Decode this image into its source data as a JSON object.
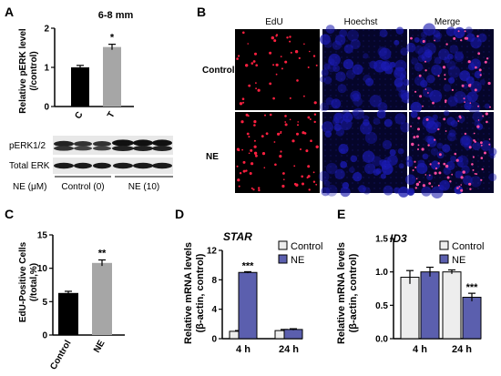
{
  "panel_letters": {
    "A": "A",
    "B": "B",
    "C": "C",
    "D": "D",
    "E": "E"
  },
  "panelA": {
    "subtitle": "6-8 mm",
    "ylabel_1": "Relative pERK level",
    "ylabel_2": "(/control)",
    "significance": "*",
    "blot": {
      "rows": [
        "pERK1/2",
        "Total ERK"
      ],
      "treatment_label": "NE (μM)",
      "groups": [
        "Control (0)",
        "NE (10)"
      ]
    }
  },
  "panelB": {
    "columns": [
      "EdU",
      "Hoechst",
      "Merge"
    ],
    "rows": [
      "Control",
      "NE"
    ]
  },
  "panelC": {
    "ylabel_1": "EdU-Positive Cells",
    "ylabel_2": "(/total,%)",
    "significance": "**"
  },
  "panelD": {
    "gene": "STAR",
    "ylabel_1": "Relative mRNA levels",
    "ylabel_2": "(β-actin, control)",
    "legend": [
      "Control",
      "NE"
    ],
    "significance": "***"
  },
  "panelE": {
    "gene": "ID3",
    "ylabel_1": "Relative mRNA levels",
    "ylabel_2": "(β-actin, control)",
    "legend": [
      "Control",
      "NE"
    ],
    "significance": "***"
  },
  "colors": {
    "black_bar": "#000000",
    "grey_bar": "#a6a6a6",
    "control_bar": "#ededed",
    "ne_bar": "#5b5fae",
    "blue": "#1a1ab0",
    "red": "#ff2040"
  },
  "chart_data": [
    {
      "id": "A",
      "type": "bar",
      "categories": [
        "C",
        "T"
      ],
      "values": [
        1.0,
        1.52
      ],
      "errors": [
        0.05,
        0.07
      ],
      "ylim": [
        0,
        2
      ],
      "yticks": [
        0,
        1,
        2
      ],
      "title": "6-8 mm",
      "ylabel": "Relative pERK level (/control)"
    },
    {
      "id": "C",
      "type": "bar",
      "categories": [
        "Control",
        "NE"
      ],
      "values": [
        6.3,
        10.8
      ],
      "errors": [
        0.25,
        0.45
      ],
      "ylim": [
        0,
        15
      ],
      "yticks": [
        0,
        5,
        10,
        15
      ],
      "ylabel": "EdU-Positive Cells (/total,%)"
    },
    {
      "id": "D",
      "type": "bar",
      "title": "STAR",
      "categories": [
        "4 h",
        "24 h"
      ],
      "series": [
        {
          "name": "Control",
          "values": [
            1.0,
            1.1
          ],
          "errors": [
            0.1,
            0.15
          ]
        },
        {
          "name": "NE",
          "values": [
            9.0,
            1.25
          ],
          "errors": [
            0.1,
            0.1
          ]
        }
      ],
      "ylim": [
        0,
        12
      ],
      "yticks": [
        0,
        4,
        8,
        12
      ],
      "ylabel": "Relative mRNA levels (β-actin, control)"
    },
    {
      "id": "E",
      "type": "bar",
      "title": "ID3",
      "categories": [
        "4 h",
        "24 h"
      ],
      "series": [
        {
          "name": "Control",
          "values": [
            0.92,
            1.0
          ],
          "errors": [
            0.1,
            0.03
          ]
        },
        {
          "name": "NE",
          "values": [
            1.0,
            0.62
          ],
          "errors": [
            0.07,
            0.06
          ]
        }
      ],
      "ylim": [
        0,
        1.5
      ],
      "yticks": [
        0.0,
        0.5,
        1.0,
        1.5
      ],
      "ylabel": "Relative mRNA levels (β-actin, control)"
    }
  ]
}
